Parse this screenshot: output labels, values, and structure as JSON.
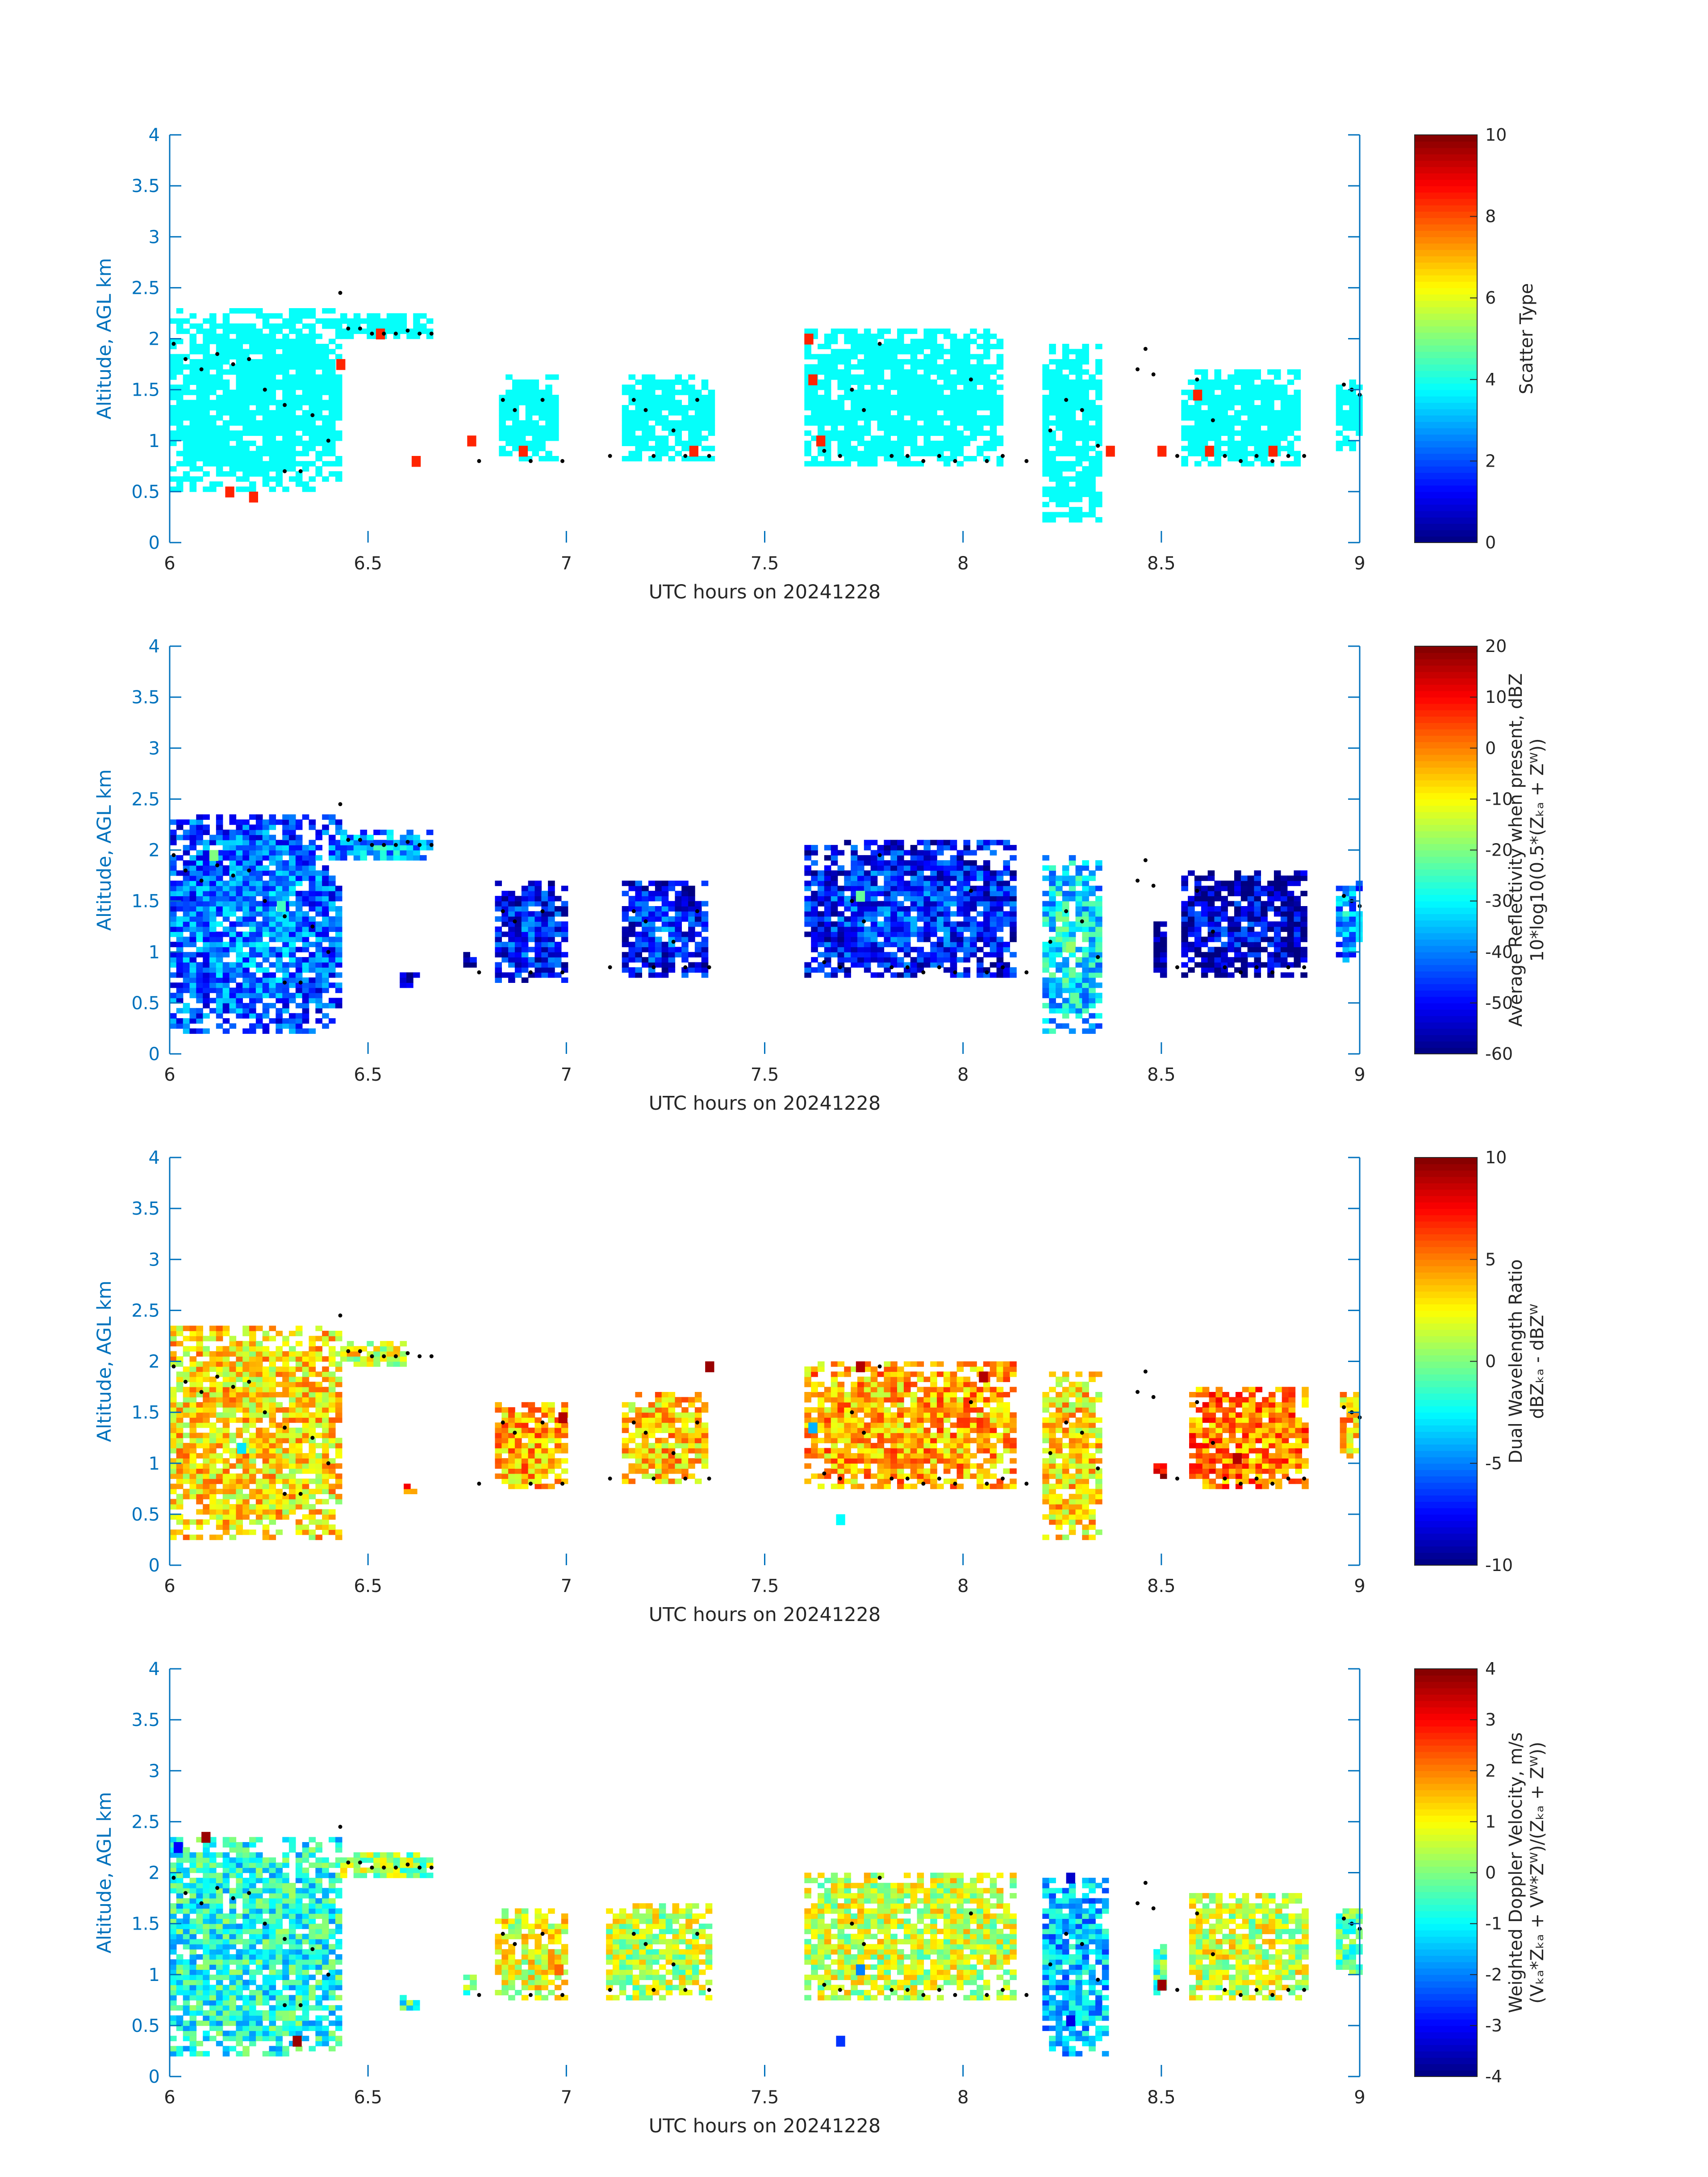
{
  "colors": {
    "axis": "#0072BD",
    "text": "#262626",
    "background": "#ffffff",
    "colormap": "jet",
    "highlight_marker": "#000000"
  },
  "chart_data": [
    {
      "type": "heatmap",
      "xlabel": "UTC hours on 20241228",
      "ylabel": "Altitude, AGL km",
      "xlim": [
        6,
        9
      ],
      "ylim": [
        0,
        4
      ],
      "xticks": [
        "6",
        "6.5",
        "7",
        "7.5",
        "8",
        "8.5",
        "9"
      ],
      "yticks": [
        "0",
        "0.5",
        "1",
        "1.5",
        "2",
        "2.5",
        "3",
        "3.5",
        "4"
      ],
      "colorbar_label": [
        "Scatter Type"
      ],
      "colorbar_ticks": [
        "0",
        "2",
        "4",
        "6",
        "8",
        "10"
      ],
      "clim": [
        0,
        10
      ],
      "grid": false,
      "cell_size": [
        0.0167,
        0.05
      ],
      "fields": [
        {
          "x": [
            6.0,
            6.42
          ],
          "y": [
            0.5,
            2.3
          ],
          "v": 3.8
        },
        {
          "x": [
            6.43,
            6.66
          ],
          "y": [
            2.0,
            2.25
          ],
          "v": 3.8
        },
        {
          "x": [
            6.83,
            6.98
          ],
          "y": [
            0.8,
            1.65
          ],
          "v": 3.8
        },
        {
          "x": [
            7.14,
            7.36
          ],
          "y": [
            0.8,
            1.65
          ],
          "v": 3.8
        },
        {
          "x": [
            7.6,
            8.1
          ],
          "y": [
            0.75,
            2.1
          ],
          "v": 3.8
        },
        {
          "x": [
            8.2,
            8.35
          ],
          "y": [
            0.2,
            1.95
          ],
          "v": 3.8
        },
        {
          "x": [
            8.55,
            8.85
          ],
          "y": [
            0.75,
            1.7
          ],
          "v": 3.8
        },
        {
          "x": [
            8.94,
            9.0
          ],
          "y": [
            0.9,
            1.6
          ],
          "v": 3.8
        }
      ],
      "spots": [
        {
          "x": 6.14,
          "y": 0.45,
          "v": 8.4
        },
        {
          "x": 6.2,
          "y": 0.4,
          "v": 8.4
        },
        {
          "x": 6.42,
          "y": 1.7,
          "v": 8.4
        },
        {
          "x": 6.52,
          "y": 2.0,
          "v": 8.4
        },
        {
          "x": 6.61,
          "y": 0.75,
          "v": 8.4
        },
        {
          "x": 6.75,
          "y": 0.95,
          "v": 8.4
        },
        {
          "x": 6.88,
          "y": 0.85,
          "v": 8.4
        },
        {
          "x": 7.31,
          "y": 0.85,
          "v": 8.4
        },
        {
          "x": 7.6,
          "y": 1.95,
          "v": 8.4
        },
        {
          "x": 7.61,
          "y": 1.55,
          "v": 8.4
        },
        {
          "x": 7.63,
          "y": 0.95,
          "v": 8.4
        },
        {
          "x": 8.36,
          "y": 0.85,
          "v": 8.4
        },
        {
          "x": 8.49,
          "y": 0.85,
          "v": 8.4
        },
        {
          "x": 8.58,
          "y": 1.4,
          "v": 8.4
        },
        {
          "x": 8.61,
          "y": 0.85,
          "v": 8.4
        },
        {
          "x": 8.77,
          "y": 0.85,
          "v": 8.4
        }
      ]
    },
    {
      "type": "heatmap",
      "xlabel": "UTC hours on 20241228",
      "ylabel": "Altitude, AGL km",
      "xlim": [
        6,
        9
      ],
      "ylim": [
        0,
        4
      ],
      "xticks": [
        "6",
        "6.5",
        "7",
        "7.5",
        "8",
        "8.5",
        "9"
      ],
      "yticks": [
        "0",
        "0.5",
        "1",
        "1.5",
        "2",
        "2.5",
        "3",
        "3.5",
        "4"
      ],
      "colorbar_label": [
        "Average Reflectivity when present, dBZ",
        "10*log10(0.5*(Zₖₐ + Zᵂ))"
      ],
      "colorbar_ticks": [
        "-60",
        "-50",
        "-40",
        "-30",
        "-20",
        "-10",
        "0",
        "10",
        "20"
      ],
      "clim": [
        -60,
        20
      ],
      "grid": false,
      "cell_size": [
        0.0167,
        0.05
      ],
      "fields": [
        {
          "x": [
            6.0,
            6.42
          ],
          "y": [
            0.2,
            2.35
          ],
          "v": -38
        },
        {
          "x": [
            6.43,
            6.65
          ],
          "y": [
            1.9,
            2.2
          ],
          "v": -33
        },
        {
          "x": [
            6.58,
            6.63
          ],
          "y": [
            0.65,
            0.8
          ],
          "v": -55
        },
        {
          "x": [
            6.74,
            6.77
          ],
          "y": [
            0.8,
            1.0
          ],
          "v": -55
        },
        {
          "x": [
            6.82,
            6.99
          ],
          "y": [
            0.7,
            1.7
          ],
          "v": -45
        },
        {
          "x": [
            7.14,
            7.35
          ],
          "y": [
            0.75,
            1.7
          ],
          "v": -45
        },
        {
          "x": [
            7.6,
            8.12
          ],
          "y": [
            0.75,
            2.1
          ],
          "v": -44
        },
        {
          "x": [
            8.2,
            8.35
          ],
          "y": [
            0.2,
            1.95
          ],
          "v": -28
        },
        {
          "x": [
            8.48,
            8.51
          ],
          "y": [
            0.75,
            1.3
          ],
          "v": -55
        },
        {
          "x": [
            8.55,
            8.86
          ],
          "y": [
            0.75,
            1.8
          ],
          "v": -50
        },
        {
          "x": [
            8.94,
            9.0
          ],
          "y": [
            0.9,
            1.7
          ],
          "v": -35
        }
      ],
      "spots": [
        {
          "x": 6.1,
          "y": 1.9,
          "v": -20
        },
        {
          "x": 6.27,
          "y": 1.4,
          "v": -25
        },
        {
          "x": 7.73,
          "y": 1.5,
          "v": -22
        },
        {
          "x": 8.26,
          "y": 1.0,
          "v": -18
        },
        {
          "x": 8.27,
          "y": 0.5,
          "v": -22
        }
      ]
    },
    {
      "type": "heatmap",
      "xlabel": "UTC hours on 20241228",
      "ylabel": "Altitude, AGL km",
      "xlim": [
        6,
        9
      ],
      "ylim": [
        0,
        4
      ],
      "xticks": [
        "6",
        "6.5",
        "7",
        "7.5",
        "8",
        "8.5",
        "9"
      ],
      "yticks": [
        "0",
        "0.5",
        "1",
        "1.5",
        "2",
        "2.5",
        "3",
        "3.5",
        "4"
      ],
      "colorbar_label": [
        "Dual Wavelength Ratio",
        "dBZₖₐ - dBZᵂ"
      ],
      "colorbar_ticks": [
        "-10",
        "-5",
        "0",
        "5",
        "10"
      ],
      "clim": [
        -10,
        10
      ],
      "grid": false,
      "cell_size": [
        0.0167,
        0.05
      ],
      "fields": [
        {
          "x": [
            6.0,
            6.42
          ],
          "y": [
            0.25,
            2.35
          ],
          "v": 3.0
        },
        {
          "x": [
            6.43,
            6.59
          ],
          "y": [
            1.95,
            2.2
          ],
          "v": 2.0
        },
        {
          "x": [
            6.59,
            6.63
          ],
          "y": [
            0.7,
            0.8
          ],
          "v": 6.0
        },
        {
          "x": [
            6.82,
            6.99
          ],
          "y": [
            0.75,
            1.6
          ],
          "v": 4.0
        },
        {
          "x": [
            7.14,
            7.35
          ],
          "y": [
            0.8,
            1.7
          ],
          "v": 3.5
        },
        {
          "x": [
            7.6,
            8.12
          ],
          "y": [
            0.75,
            2.0
          ],
          "v": 4.0
        },
        {
          "x": [
            8.2,
            8.35
          ],
          "y": [
            0.25,
            1.9
          ],
          "v": 3.0
        },
        {
          "x": [
            8.48,
            8.51
          ],
          "y": [
            0.85,
            1.0
          ],
          "v": 8.0
        },
        {
          "x": [
            8.57,
            8.86
          ],
          "y": [
            0.75,
            1.75
          ],
          "v": 5.0
        },
        {
          "x": [
            8.95,
            9.0
          ],
          "y": [
            1.05,
            1.7
          ],
          "v": 3.5
        }
      ],
      "spots": [
        {
          "x": 7.35,
          "y": 1.9,
          "v": 9.5
        },
        {
          "x": 7.73,
          "y": 1.9,
          "v": 9.0
        },
        {
          "x": 8.04,
          "y": 1.8,
          "v": 9.0
        },
        {
          "x": 6.98,
          "y": 1.4,
          "v": 9.0
        },
        {
          "x": 8.68,
          "y": 1.0,
          "v": 9.0
        },
        {
          "x": 7.61,
          "y": 1.3,
          "v": -4.0
        },
        {
          "x": 7.68,
          "y": 0.4,
          "v": -2.5
        },
        {
          "x": 6.17,
          "y": 1.1,
          "v": -3.0
        }
      ]
    },
    {
      "type": "heatmap",
      "xlabel": "UTC hours on 20241228",
      "ylabel": "Altitude, AGL km",
      "xlim": [
        6,
        9
      ],
      "ylim": [
        0,
        4
      ],
      "xticks": [
        "6",
        "6.5",
        "7",
        "7.5",
        "8",
        "8.5",
        "9"
      ],
      "yticks": [
        "0",
        "0.5",
        "1",
        "1.5",
        "2",
        "2.5",
        "3",
        "3.5",
        "4"
      ],
      "colorbar_label": [
        "Weighted Doppler Velocity, m/s",
        "(Vₖₐ*Zₖₐ + Vᵂ*Zᵂ)/(Zₖₐ + Zᵂ))"
      ],
      "colorbar_ticks": [
        "-4",
        "-3",
        "-2",
        "-1",
        "0",
        "1",
        "2",
        "3",
        "4"
      ],
      "clim": [
        -4,
        4
      ],
      "grid": false,
      "cell_size": [
        0.0167,
        0.05
      ],
      "fields": [
        {
          "x": [
            6.0,
            6.42
          ],
          "y": [
            0.2,
            2.35
          ],
          "v": -0.8
        },
        {
          "x": [
            6.43,
            6.65
          ],
          "y": [
            1.95,
            2.2
          ],
          "v": 0.2
        },
        {
          "x": [
            6.58,
            6.63
          ],
          "y": [
            0.65,
            0.8
          ],
          "v": -0.5
        },
        {
          "x": [
            6.74,
            6.77
          ],
          "y": [
            0.8,
            1.0
          ],
          "v": -0.2
        },
        {
          "x": [
            6.82,
            6.99
          ],
          "y": [
            0.75,
            1.65
          ],
          "v": 0.8
        },
        {
          "x": [
            7.1,
            7.36
          ],
          "y": [
            0.75,
            1.7
          ],
          "v": 0.5
        },
        {
          "x": [
            7.6,
            8.12
          ],
          "y": [
            0.75,
            2.0
          ],
          "v": 0.6
        },
        {
          "x": [
            8.2,
            8.36
          ],
          "y": [
            0.2,
            1.95
          ],
          "v": -1.5
        },
        {
          "x": [
            8.48,
            8.51
          ],
          "y": [
            0.75,
            1.3
          ],
          "v": -0.5
        },
        {
          "x": [
            8.57,
            8.86
          ],
          "y": [
            0.75,
            1.8
          ],
          "v": 0.6
        },
        {
          "x": [
            8.94,
            9.0
          ],
          "y": [
            1.0,
            1.7
          ],
          "v": -0.3
        }
      ],
      "spots": [
        {
          "x": 6.08,
          "y": 2.3,
          "v": 3.8
        },
        {
          "x": 6.31,
          "y": 0.3,
          "v": 3.8
        },
        {
          "x": 6.01,
          "y": 2.2,
          "v": -3.0
        },
        {
          "x": 7.68,
          "y": 0.3,
          "v": -2.6
        },
        {
          "x": 7.73,
          "y": 1.0,
          "v": -2.0
        },
        {
          "x": 8.26,
          "y": 0.5,
          "v": -3.2
        },
        {
          "x": 8.26,
          "y": 1.9,
          "v": -3.4
        },
        {
          "x": 6.97,
          "y": 1.0,
          "v": 2.2
        },
        {
          "x": 8.49,
          "y": 0.85,
          "v": 3.8
        }
      ]
    }
  ],
  "highlight_points": [
    {
      "x": 6.01,
      "y": 1.95
    },
    {
      "x": 6.04,
      "y": 1.8
    },
    {
      "x": 6.08,
      "y": 1.7
    },
    {
      "x": 6.12,
      "y": 1.85
    },
    {
      "x": 6.16,
      "y": 1.75
    },
    {
      "x": 6.2,
      "y": 1.8
    },
    {
      "x": 6.24,
      "y": 1.5
    },
    {
      "x": 6.29,
      "y": 1.35
    },
    {
      "x": 6.29,
      "y": 0.7
    },
    {
      "x": 6.33,
      "y": 0.7
    },
    {
      "x": 6.36,
      "y": 1.25
    },
    {
      "x": 6.4,
      "y": 1.0
    },
    {
      "x": 6.43,
      "y": 2.45
    },
    {
      "x": 6.45,
      "y": 2.1
    },
    {
      "x": 6.48,
      "y": 2.1
    },
    {
      "x": 6.51,
      "y": 2.05
    },
    {
      "x": 6.54,
      "y": 2.05
    },
    {
      "x": 6.57,
      "y": 2.05
    },
    {
      "x": 6.6,
      "y": 2.08
    },
    {
      "x": 6.63,
      "y": 2.05
    },
    {
      "x": 6.66,
      "y": 2.05
    },
    {
      "x": 6.78,
      "y": 0.8
    },
    {
      "x": 6.84,
      "y": 1.4
    },
    {
      "x": 6.87,
      "y": 1.3
    },
    {
      "x": 6.91,
      "y": 0.8
    },
    {
      "x": 6.94,
      "y": 1.4
    },
    {
      "x": 6.99,
      "y": 0.8
    },
    {
      "x": 7.11,
      "y": 0.85
    },
    {
      "x": 7.17,
      "y": 1.4
    },
    {
      "x": 7.2,
      "y": 1.3
    },
    {
      "x": 7.22,
      "y": 0.85
    },
    {
      "x": 7.27,
      "y": 1.1
    },
    {
      "x": 7.3,
      "y": 0.85
    },
    {
      "x": 7.33,
      "y": 1.4
    },
    {
      "x": 7.36,
      "y": 0.85
    },
    {
      "x": 7.65,
      "y": 0.9
    },
    {
      "x": 7.69,
      "y": 0.85
    },
    {
      "x": 7.72,
      "y": 1.5
    },
    {
      "x": 7.75,
      "y": 1.3
    },
    {
      "x": 7.79,
      "y": 1.95
    },
    {
      "x": 7.82,
      "y": 0.85
    },
    {
      "x": 7.86,
      "y": 0.85
    },
    {
      "x": 7.9,
      "y": 0.8
    },
    {
      "x": 7.94,
      "y": 0.85
    },
    {
      "x": 7.98,
      "y": 0.8
    },
    {
      "x": 8.02,
      "y": 1.6
    },
    {
      "x": 8.06,
      "y": 0.8
    },
    {
      "x": 8.1,
      "y": 0.85
    },
    {
      "x": 8.16,
      "y": 0.8
    },
    {
      "x": 8.22,
      "y": 1.1
    },
    {
      "x": 8.26,
      "y": 1.4
    },
    {
      "x": 8.3,
      "y": 1.3
    },
    {
      "x": 8.34,
      "y": 0.95
    },
    {
      "x": 8.44,
      "y": 1.7
    },
    {
      "x": 8.46,
      "y": 1.9
    },
    {
      "x": 8.48,
      "y": 1.65
    },
    {
      "x": 8.54,
      "y": 0.85
    },
    {
      "x": 8.59,
      "y": 1.6
    },
    {
      "x": 8.63,
      "y": 1.2
    },
    {
      "x": 8.66,
      "y": 0.85
    },
    {
      "x": 8.7,
      "y": 0.8
    },
    {
      "x": 8.74,
      "y": 0.85
    },
    {
      "x": 8.78,
      "y": 0.8
    },
    {
      "x": 8.82,
      "y": 0.85
    },
    {
      "x": 8.86,
      "y": 0.85
    },
    {
      "x": 8.96,
      "y": 1.55
    },
    {
      "x": 8.98,
      "y": 1.5
    },
    {
      "x": 9.0,
      "y": 1.45
    }
  ]
}
